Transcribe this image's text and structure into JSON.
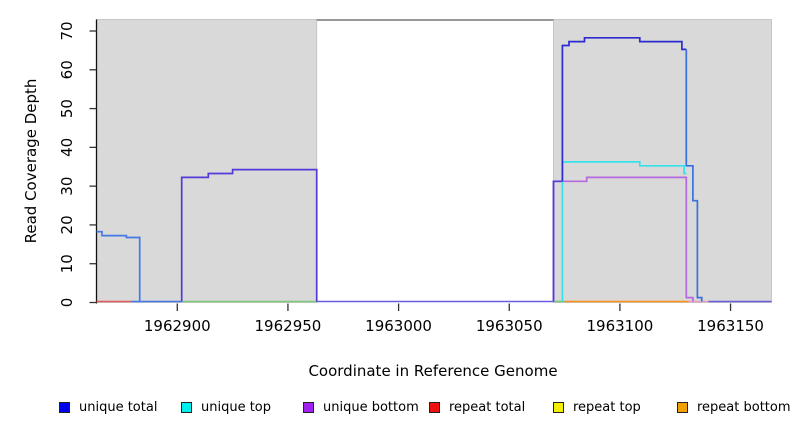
{
  "chart_data": {
    "type": "line",
    "subtype": "step-coverage-plot",
    "title": "",
    "xlabel": "Coordinate in Reference Genome",
    "ylabel": "Read Coverage Depth",
    "xlim": [
      1962863.5,
      1963168.5
    ],
    "ylim": [
      0,
      73
    ],
    "x_ticks": [
      1962900,
      1962950,
      1963000,
      1963050,
      1963100,
      1963150
    ],
    "y_ticks": [
      0,
      10,
      20,
      30,
      40,
      50,
      60,
      70
    ],
    "grid": false,
    "legend_position": "bottom",
    "background_color": "#ffffff",
    "shaded_regions": [
      {
        "name": "left-gray-region",
        "from": 1962863.5,
        "to": 1962963,
        "color": "#d9d9d9",
        "edge_color": "#c6c6c6"
      },
      {
        "name": "right-gray-region",
        "from": 1963070,
        "to": 1963168.5,
        "color": "#d9d9d9",
        "edge_color": "#c6c6c6"
      }
    ],
    "gap_top_line": {
      "from": 1962963,
      "to": 1963070,
      "color": "#8a8a8a"
    },
    "baseline_segments": [
      {
        "from": 1962863.5,
        "to": 1962879,
        "color": "#e25b5b"
      },
      {
        "from": 1962879,
        "to": 1962902,
        "color": "#4477e8"
      },
      {
        "from": 1962902,
        "to": 1962963,
        "color": "#7cc87c"
      },
      {
        "from": 1962963,
        "to": 1963070,
        "color": "#6a5ce0"
      },
      {
        "from": 1963070,
        "to": 1963075,
        "color": "#7cc87c"
      },
      {
        "from": 1963075,
        "to": 1963131,
        "color": "#ff9018"
      },
      {
        "from": 1963131,
        "to": 1963140,
        "color": "#e8a0b8"
      },
      {
        "from": 1963140,
        "to": 1963168.5,
        "color": "#6a5ce0"
      }
    ],
    "series": [
      {
        "name": "unique-total-left-hump",
        "legend": "unique total",
        "color": "#4477e8",
        "points": [
          [
            1962863.5,
            18
          ],
          [
            1962866,
            18
          ],
          [
            1962866,
            17
          ],
          [
            1962877,
            17
          ],
          [
            1962877,
            16.5
          ],
          [
            1962883,
            16.5
          ],
          [
            1962883,
            0
          ]
        ]
      },
      {
        "name": "unique-total-mid-hump",
        "legend": "unique total",
        "color": "#5538da",
        "points": [
          [
            1962902,
            0
          ],
          [
            1962902,
            32
          ],
          [
            1962914,
            32
          ],
          [
            1962914,
            33
          ],
          [
            1962925,
            33
          ],
          [
            1962925,
            34
          ],
          [
            1962963,
            34
          ],
          [
            1962963,
            0
          ]
        ]
      },
      {
        "name": "unique-bottom-right",
        "legend": "unique bottom",
        "color": "#b469e0",
        "points": [
          [
            1963070,
            0
          ],
          [
            1963070,
            31
          ],
          [
            1963085,
            31
          ],
          [
            1963085,
            32
          ],
          [
            1963130,
            32
          ],
          [
            1963130,
            1
          ],
          [
            1963133,
            1
          ],
          [
            1963133,
            0
          ]
        ]
      },
      {
        "name": "unique-top-right",
        "legend": "unique top",
        "color": "#35e2ea",
        "points": [
          [
            1963074,
            0
          ],
          [
            1963074,
            36
          ],
          [
            1963109,
            36
          ],
          [
            1963109,
            35
          ],
          [
            1963129,
            35
          ],
          [
            1963129,
            33
          ],
          [
            1963130,
            33
          ]
        ]
      },
      {
        "name": "unique-total-right-rise",
        "legend": "unique total",
        "color": "#5538da",
        "points": [
          [
            1963070,
            0
          ],
          [
            1963070,
            31
          ],
          [
            1963074,
            31
          ]
        ]
      },
      {
        "name": "unique-total-right-peak",
        "legend": "unique total",
        "color": "#2b2bd0",
        "points": [
          [
            1963074,
            31
          ],
          [
            1963074,
            66
          ],
          [
            1963077,
            66
          ],
          [
            1963077,
            67
          ],
          [
            1963084,
            67
          ],
          [
            1963084,
            68
          ],
          [
            1963109,
            68
          ],
          [
            1963109,
            67
          ],
          [
            1963128,
            67
          ],
          [
            1963128,
            65
          ],
          [
            1963130,
            65
          ]
        ]
      },
      {
        "name": "unique-total-right-descent",
        "legend": "unique total",
        "color": "#3a6fe0",
        "points": [
          [
            1963130,
            65
          ],
          [
            1963130,
            35
          ],
          [
            1963133,
            35
          ],
          [
            1963133,
            26
          ],
          [
            1963135,
            26
          ],
          [
            1963135,
            1
          ],
          [
            1963137,
            1
          ],
          [
            1963137,
            0
          ]
        ]
      }
    ],
    "legend": [
      {
        "label": "unique total",
        "color": "#0000f0"
      },
      {
        "label": "unique top",
        "color": "#00eeee"
      },
      {
        "label": "unique bottom",
        "color": "#a020f0"
      },
      {
        "label": "repeat total",
        "color": "#ee1111"
      },
      {
        "label": "repeat top",
        "color": "#f5ee00"
      },
      {
        "label": "repeat bottom",
        "color": "#f0a000"
      }
    ],
    "axis_color": "#111111",
    "tick_color": "#333333"
  }
}
